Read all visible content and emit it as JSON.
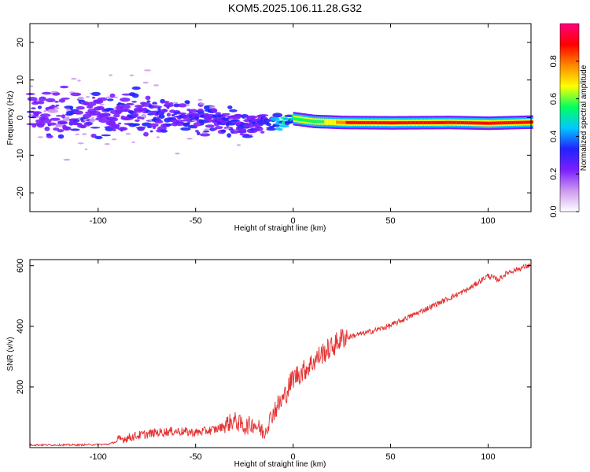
{
  "title": "KOM5.2025.106.11.28.G32",
  "chart_data": [
    {
      "type": "heatmap",
      "xlabel": "Height of straight line (km)",
      "ylabel": "Frequency (Hz)",
      "xlim": [
        -135,
        122
      ],
      "ylim": [
        -25,
        25
      ],
      "xticks": [
        -100,
        -50,
        0,
        50,
        100
      ],
      "yticks": [
        -20,
        -10,
        0,
        10,
        20
      ],
      "colorbar": {
        "label": "Normalized spectral amplitude",
        "range": [
          0,
          1
        ],
        "ticks": [
          0.0,
          0.2,
          0.4,
          0.6,
          0.8
        ],
        "tick_labels": [
          "0.0",
          "0.2",
          "0.4",
          "0.6",
          "0.8"
        ],
        "colors": [
          "#ffffff",
          "#cc99ee",
          "#7a1fff",
          "#2222ff",
          "#00c8ff",
          "#00ff60",
          "#ffff00",
          "#ff8800",
          "#ff0000",
          "#ff0080"
        ]
      },
      "ridge": [
        {
          "x": -135,
          "y": 1.0
        },
        {
          "x": -110,
          "y": 0.5
        },
        {
          "x": -80,
          "y": 1.5
        },
        {
          "x": -60,
          "y": 0.0
        },
        {
          "x": -40,
          "y": -1.0
        },
        {
          "x": -25,
          "y": -2.0
        },
        {
          "x": -15,
          "y": -1.5
        },
        {
          "x": -5,
          "y": -1.2
        },
        {
          "x": 0,
          "y": -0.3
        },
        {
          "x": 10,
          "y": -1.0
        },
        {
          "x": 25,
          "y": -1.3
        },
        {
          "x": 50,
          "y": -1.4
        },
        {
          "x": 80,
          "y": -1.3
        },
        {
          "x": 100,
          "y": -1.5
        },
        {
          "x": 122,
          "y": -1.2
        }
      ],
      "amplitude": [
        {
          "x": -135,
          "v": 0.25
        },
        {
          "x": -90,
          "v": 0.3
        },
        {
          "x": -50,
          "v": 0.3
        },
        {
          "x": -20,
          "v": 0.3
        },
        {
          "x": -10,
          "v": 0.4
        },
        {
          "x": 0,
          "v": 0.55
        },
        {
          "x": 15,
          "v": 0.6
        },
        {
          "x": 30,
          "v": 0.9
        },
        {
          "x": 122,
          "v": 0.9
        }
      ],
      "spread_hz": [
        {
          "x": -135,
          "s": 5
        },
        {
          "x": -80,
          "s": 4.5
        },
        {
          "x": -40,
          "s": 3.5
        },
        {
          "x": -15,
          "s": 2
        },
        {
          "x": 0,
          "s": 1.2
        },
        {
          "x": 20,
          "s": 0.7
        },
        {
          "x": 122,
          "s": 0.6
        }
      ]
    },
    {
      "type": "line",
      "xlabel": "Height of straight line (km)",
      "ylabel": "SNR (v/v)",
      "xlim": [
        -135,
        122
      ],
      "ylim": [
        0,
        620
      ],
      "xticks": [
        -100,
        -50,
        0,
        50,
        100
      ],
      "yticks": [
        200,
        400,
        600
      ],
      "color": "#e53030",
      "series": [
        {
          "x": [
            -135,
            -110,
            -95,
            -90,
            -80,
            -70,
            -60,
            -50,
            -40,
            -30,
            -25,
            -20,
            -15,
            -10,
            -5,
            0,
            5,
            10,
            15,
            20,
            25,
            30,
            40,
            50,
            60,
            70,
            80,
            90,
            100,
            105,
            110,
            122
          ],
          "y": [
            8,
            8,
            10,
            20,
            35,
            45,
            50,
            45,
            55,
            80,
            60,
            70,
            40,
            110,
            150,
            220,
            240,
            270,
            300,
            320,
            350,
            365,
            380,
            400,
            430,
            460,
            490,
            520,
            565,
            550,
            575,
            600
          ]
        }
      ]
    }
  ]
}
